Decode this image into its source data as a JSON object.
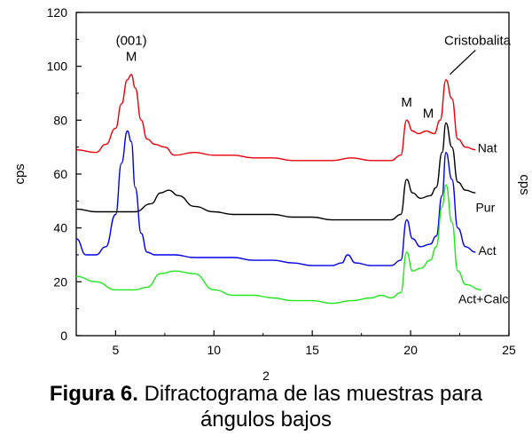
{
  "chart_data": {
    "type": "line",
    "xlabel": "2",
    "ylabel": "cps",
    "ylabel_right": "cps",
    "xlim": [
      3,
      25
    ],
    "ylim": [
      0,
      120
    ],
    "xticks": [
      5,
      10,
      15,
      20,
      25
    ],
    "yticks": [
      0,
      20,
      40,
      60,
      80,
      100,
      120
    ],
    "grid": false,
    "legend": "none",
    "series": [
      {
        "name": "Nat",
        "color": "#e8000b",
        "x": [
          3,
          4,
          4.5,
          5,
          5.3,
          5.6,
          5.8,
          6.0,
          6.3,
          6.6,
          7,
          7.5,
          8,
          9,
          10,
          11,
          12,
          13,
          14,
          15,
          16,
          17,
          18,
          19,
          19.5,
          19.8,
          20.1,
          20.4,
          20.8,
          21.2,
          21.5,
          21.8,
          22.1,
          22.4,
          22.8,
          23.3
        ],
        "y": [
          69,
          68,
          71,
          77,
          86,
          95,
          97,
          92,
          80,
          73,
          71,
          70,
          67,
          68,
          67,
          67,
          66,
          66,
          65,
          65,
          65,
          66,
          65,
          65,
          67,
          80,
          76,
          75,
          76,
          75,
          80,
          95,
          88,
          73,
          70,
          69
        ]
      },
      {
        "name": "Pur",
        "color": "#000000",
        "x": [
          3,
          4,
          5,
          6,
          6.8,
          7.3,
          7.7,
          8.2,
          9,
          10,
          11,
          12,
          13,
          14,
          15,
          16,
          17,
          18,
          19,
          19.5,
          19.8,
          20.1,
          20.5,
          21,
          21.3,
          21.6,
          21.8,
          22.1,
          22.4,
          22.8,
          23.3
        ],
        "y": [
          47,
          46,
          46,
          46,
          49,
          53,
          54,
          52,
          48,
          46,
          45,
          45,
          45,
          44,
          44,
          43,
          43,
          43,
          43,
          45,
          58,
          53,
          51,
          52,
          55,
          68,
          79,
          70,
          57,
          54,
          53
        ]
      },
      {
        "name": "Act",
        "color": "#0000e6",
        "x": [
          3,
          3.5,
          4,
          4.5,
          5,
          5.3,
          5.6,
          5.8,
          6.0,
          6.3,
          6.6,
          7,
          8,
          9,
          10,
          11,
          12,
          13,
          14,
          15,
          16,
          16.5,
          16.8,
          17.2,
          18,
          19,
          19.5,
          19.8,
          20.1,
          20.5,
          21,
          21.3,
          21.6,
          21.8,
          22.1,
          22.4,
          22.8,
          23.3
        ],
        "y": [
          36,
          30,
          30,
          33,
          45,
          64,
          76,
          72,
          55,
          38,
          31,
          30,
          30,
          29,
          29,
          29,
          28,
          28,
          27,
          26,
          26,
          27,
          30,
          27,
          26,
          26,
          28,
          43,
          36,
          33,
          34,
          37,
          52,
          68,
          58,
          40,
          33,
          31
        ]
      },
      {
        "name": "Act+Calc",
        "color": "#22e61e",
        "x": [
          3,
          4,
          5,
          6,
          6.6,
          7.3,
          8,
          9,
          10,
          11,
          12,
          13,
          14,
          15,
          16,
          17,
          18,
          18.5,
          19,
          19.5,
          19.8,
          20.1,
          20.5,
          21,
          21.3,
          21.6,
          21.8,
          22.1,
          22.4,
          22.8,
          23.6
        ],
        "y": [
          22,
          20,
          17,
          17,
          18,
          23,
          24,
          23,
          17,
          15,
          15,
          14,
          13,
          13,
          12,
          13,
          14,
          15,
          14,
          16,
          31,
          24,
          25,
          28,
          33,
          48,
          56,
          42,
          24,
          19,
          17
        ]
      }
    ],
    "annotations": [
      {
        "text": "(001)",
        "x": 5.8,
        "y": 108
      },
      {
        "text": "M",
        "x": 5.8,
        "y": 102
      },
      {
        "text": "M",
        "x": 19.8,
        "y": 85
      },
      {
        "text": "M",
        "x": 20.9,
        "y": 81
      },
      {
        "text": "Cristobalita",
        "x": 23.4,
        "y": 108
      }
    ],
    "series_labels": [
      {
        "text": "Nat",
        "x": 23.9,
        "y": 68
      },
      {
        "text": "Pur",
        "x": 23.8,
        "y": 46
      },
      {
        "text": "Act",
        "x": 23.9,
        "y": 30
      },
      {
        "text": "Act+Calc",
        "x": 23.7,
        "y": 12
      }
    ]
  },
  "caption": {
    "bold": "Figura 6.",
    "line1": " Difractograma  de las muestras  para",
    "line2": "ángulos bajos"
  }
}
